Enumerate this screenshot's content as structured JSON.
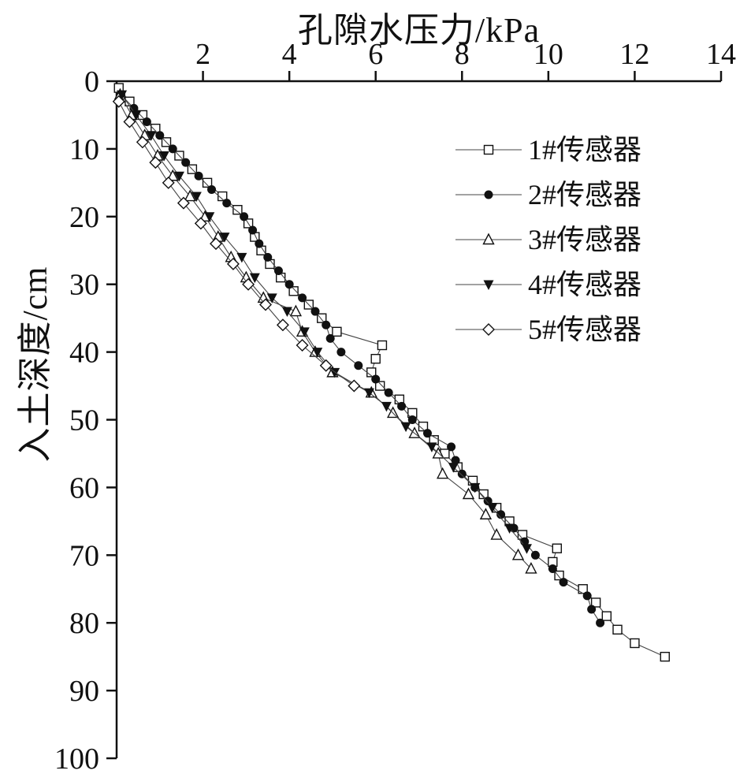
{
  "title": "孔隙水压力/kPa",
  "y_axis_label": "入土深度/cm",
  "chart_data": {
    "type": "scatter",
    "xlabel": "孔隙水压力/kPa",
    "ylabel": "入土深度/cm",
    "xlim": [
      0,
      14
    ],
    "ylim": [
      0,
      100
    ],
    "x_axis_position": "top",
    "y_axis_inverted": true,
    "grid": false,
    "legend_position": "inside-upper-right",
    "x_ticks": [
      2,
      4,
      6,
      8,
      10,
      12,
      14
    ],
    "y_ticks": [
      0,
      10,
      20,
      30,
      40,
      50,
      60,
      70,
      80,
      90,
      100
    ],
    "line_color": "#444444",
    "marker_color": "#111111",
    "series": [
      {
        "name": "1#传感器",
        "marker": "square-open",
        "points": [
          [
            0.05,
            1
          ],
          [
            0.3,
            3
          ],
          [
            0.6,
            5
          ],
          [
            0.9,
            7
          ],
          [
            1.15,
            9
          ],
          [
            1.45,
            11
          ],
          [
            1.75,
            13
          ],
          [
            2.1,
            15
          ],
          [
            2.45,
            17
          ],
          [
            2.8,
            19
          ],
          [
            3.05,
            21
          ],
          [
            3.2,
            23
          ],
          [
            3.35,
            25
          ],
          [
            3.55,
            27
          ],
          [
            3.8,
            29
          ],
          [
            4.1,
            31
          ],
          [
            4.45,
            33
          ],
          [
            4.75,
            35
          ],
          [
            5.1,
            37
          ],
          [
            6.15,
            39
          ],
          [
            6.0,
            41
          ],
          [
            5.9,
            43
          ],
          [
            6.1,
            45
          ],
          [
            6.55,
            47
          ],
          [
            6.85,
            49
          ],
          [
            7.1,
            51
          ],
          [
            7.35,
            53
          ],
          [
            7.6,
            55
          ],
          [
            7.9,
            57
          ],
          [
            8.25,
            59
          ],
          [
            8.5,
            61
          ],
          [
            8.8,
            63
          ],
          [
            9.1,
            65
          ],
          [
            9.4,
            67
          ],
          [
            10.2,
            69
          ],
          [
            10.1,
            71
          ],
          [
            10.25,
            73
          ],
          [
            10.8,
            75
          ],
          [
            11.1,
            77
          ],
          [
            11.35,
            79
          ],
          [
            11.6,
            81
          ],
          [
            12.0,
            83
          ],
          [
            12.7,
            85
          ]
        ]
      },
      {
        "name": "2#传感器",
        "marker": "circle-filled",
        "points": [
          [
            0.1,
            2
          ],
          [
            0.4,
            4
          ],
          [
            0.7,
            6
          ],
          [
            1.0,
            8
          ],
          [
            1.3,
            10
          ],
          [
            1.6,
            12
          ],
          [
            1.9,
            14
          ],
          [
            2.2,
            16
          ],
          [
            2.55,
            18
          ],
          [
            2.95,
            20
          ],
          [
            3.15,
            22
          ],
          [
            3.3,
            24
          ],
          [
            3.5,
            26
          ],
          [
            3.75,
            28
          ],
          [
            4.0,
            30
          ],
          [
            4.3,
            32
          ],
          [
            4.6,
            34
          ],
          [
            4.85,
            36
          ],
          [
            4.95,
            38
          ],
          [
            5.2,
            40
          ],
          [
            5.6,
            42
          ],
          [
            6.0,
            44
          ],
          [
            6.3,
            46
          ],
          [
            6.6,
            48
          ],
          [
            6.85,
            50
          ],
          [
            7.2,
            52
          ],
          [
            7.75,
            54
          ],
          [
            7.85,
            56
          ],
          [
            8.0,
            58
          ],
          [
            8.3,
            60
          ],
          [
            8.6,
            62
          ],
          [
            8.9,
            64
          ],
          [
            9.2,
            66
          ],
          [
            9.45,
            68
          ],
          [
            9.7,
            70
          ],
          [
            10.1,
            72
          ],
          [
            10.35,
            74
          ],
          [
            10.9,
            76
          ],
          [
            11.0,
            78
          ],
          [
            11.2,
            80
          ]
        ]
      },
      {
        "name": "3#传感器",
        "marker": "triangle-open",
        "points": [
          [
            0.08,
            2
          ],
          [
            0.35,
            5
          ],
          [
            0.65,
            8
          ],
          [
            0.95,
            11
          ],
          [
            1.3,
            14
          ],
          [
            1.7,
            17
          ],
          [
            2.05,
            20
          ],
          [
            2.35,
            23
          ],
          [
            2.65,
            26
          ],
          [
            3.0,
            29
          ],
          [
            3.4,
            32
          ],
          [
            4.15,
            34
          ],
          [
            4.3,
            37
          ],
          [
            4.6,
            40
          ],
          [
            5.0,
            43
          ],
          [
            5.9,
            46
          ],
          [
            6.4,
            49
          ],
          [
            6.9,
            52
          ],
          [
            7.45,
            55
          ],
          [
            7.55,
            58
          ],
          [
            8.15,
            61
          ],
          [
            8.55,
            64
          ],
          [
            8.8,
            67
          ],
          [
            9.3,
            70
          ],
          [
            9.6,
            72
          ]
        ]
      },
      {
        "name": "4#传感器",
        "marker": "triangle-down-filled",
        "points": [
          [
            0.12,
            2
          ],
          [
            0.45,
            5
          ],
          [
            0.8,
            8
          ],
          [
            1.1,
            11
          ],
          [
            1.45,
            14
          ],
          [
            1.85,
            17
          ],
          [
            2.15,
            20
          ],
          [
            2.5,
            23
          ],
          [
            2.9,
            26
          ],
          [
            3.2,
            29
          ],
          [
            3.6,
            32
          ],
          [
            3.95,
            34
          ],
          [
            4.35,
            37
          ],
          [
            4.65,
            40
          ],
          [
            5.05,
            43
          ],
          [
            5.85,
            46
          ],
          [
            6.25,
            48
          ],
          [
            6.7,
            51
          ],
          [
            7.3,
            54
          ],
          [
            7.8,
            57
          ],
          [
            8.3,
            60
          ],
          [
            8.7,
            63
          ],
          [
            9.1,
            66
          ],
          [
            9.5,
            69
          ]
        ]
      },
      {
        "name": "5#传感器",
        "marker": "diamond-open",
        "points": [
          [
            0.05,
            3
          ],
          [
            0.3,
            6
          ],
          [
            0.6,
            9
          ],
          [
            0.9,
            12
          ],
          [
            1.2,
            15
          ],
          [
            1.55,
            18
          ],
          [
            1.95,
            21
          ],
          [
            2.3,
            24
          ],
          [
            2.7,
            27
          ],
          [
            3.05,
            30
          ],
          [
            3.45,
            33
          ],
          [
            3.85,
            36
          ],
          [
            4.3,
            39
          ],
          [
            4.85,
            42
          ],
          [
            5.5,
            45
          ]
        ]
      }
    ]
  }
}
